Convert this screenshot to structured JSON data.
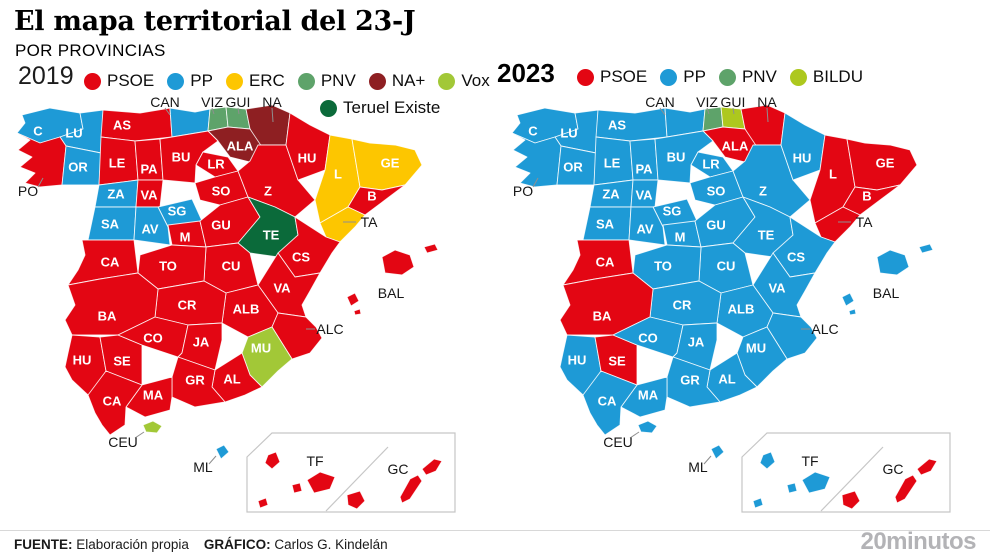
{
  "title": "El mapa territorial del 23-J",
  "subtitle": "POR PROVINCIAS",
  "parties": {
    "PSOE": "#e30613",
    "PP": "#1e9ad6",
    "ERC": "#fdc600",
    "PNV": "#5ea36a",
    "NA+": "#8e1f22",
    "VOX": "#a2c837",
    "BILDU": "#adc81e",
    "TERUEL": "#0b6a3a"
  },
  "province_labels": {
    "C": "C",
    "LU": "LU",
    "PO": "PO",
    "OR": "OR",
    "AS": "AS",
    "CAN": "CAN",
    "VIZ": "VIZ",
    "GUI": "GUI",
    "NA": "NA",
    "ALA": "ALA",
    "LE": "LE",
    "PA": "PA",
    "BU": "BU",
    "LR": "LR",
    "ZA": "ZA",
    "VAD": "VA",
    "SO": "SO",
    "SA": "SA",
    "SG": "SG",
    "AV": "AV",
    "M": "M",
    "GU": "GU",
    "Z": "Z",
    "HUE": "HU",
    "TE": "TE",
    "L": "L",
    "GE": "GE",
    "B": "B",
    "TA": "TA",
    "CS": "CS",
    "VAL": "VA",
    "CU": "CU",
    "ALB": "ALB",
    "ALC": "ALC",
    "MU": "MU",
    "AL": "AL",
    "TO": "TO",
    "CR": "CR",
    "CAC": "CA",
    "BA": "BA",
    "HUL": "HU",
    "SE": "SE",
    "CO": "CO",
    "JA": "JA",
    "GR": "GR",
    "MA": "MA",
    "CAD": "CA",
    "BAL": "BAL",
    "CEU": "CEU",
    "ML": "ML",
    "TF": "TF",
    "GC": "GC"
  },
  "maps": [
    {
      "year": "2019",
      "legend": [
        {
          "label": "PSOE",
          "party": "PSOE"
        },
        {
          "label": "PP",
          "party": "PP"
        },
        {
          "label": "ERC",
          "party": "ERC"
        },
        {
          "label": "PNV",
          "party": "PNV"
        },
        {
          "label": "NA+",
          "party": "NA+"
        },
        {
          "label": "Vox",
          "party": "VOX"
        }
      ],
      "legend2": [
        {
          "label": "Teruel Existe",
          "party": "TERUEL"
        }
      ],
      "results": {
        "C": "PP",
        "LU": "PP",
        "PO": "PSOE",
        "OR": "PP",
        "AS": "PSOE",
        "CAN": "PP",
        "VIZ": "PNV",
        "GUI": "PNV",
        "NA": "NA+",
        "ALA": "NA+",
        "LE": "PSOE",
        "PA": "PSOE",
        "BU": "PSOE",
        "LR": "PSOE",
        "ZA": "PP",
        "VAD": "PSOE",
        "SO": "PSOE",
        "SA": "PP",
        "SG": "PP",
        "AV": "PP",
        "M": "PSOE",
        "GU": "PSOE",
        "Z": "PSOE",
        "HUE": "PSOE",
        "TE": "TERUEL",
        "L": "ERC",
        "GE": "ERC",
        "B": "PSOE",
        "TA": "ERC",
        "CS": "PSOE",
        "VAL": "PSOE",
        "CU": "PSOE",
        "ALB": "PSOE",
        "ALC": "PSOE",
        "MU": "VOX",
        "AL": "PSOE",
        "TO": "PSOE",
        "CR": "PSOE",
        "CAC": "PSOE",
        "BA": "PSOE",
        "HUL": "PSOE",
        "SE": "PSOE",
        "CO": "PSOE",
        "JA": "PSOE",
        "GR": "PSOE",
        "MA": "PSOE",
        "CAD": "PSOE",
        "BAL": "PSOE",
        "CEU": "VOX",
        "ML": "PP",
        "TF": "PSOE",
        "GC": "PSOE"
      }
    },
    {
      "year": "2023",
      "legend": [
        {
          "label": "PSOE",
          "party": "PSOE"
        },
        {
          "label": "PP",
          "party": "PP"
        },
        {
          "label": "PNV",
          "party": "PNV"
        },
        {
          "label": "BILDU",
          "party": "BILDU"
        }
      ],
      "legend2": [],
      "results": {
        "C": "PP",
        "LU": "PP",
        "PO": "PP",
        "OR": "PP",
        "AS": "PP",
        "CAN": "PP",
        "VIZ": "PNV",
        "GUI": "BILDU",
        "NA": "PSOE",
        "ALA": "PSOE",
        "LE": "PP",
        "PA": "PP",
        "BU": "PP",
        "LR": "PP",
        "ZA": "PP",
        "VAD": "PP",
        "SO": "PP",
        "SA": "PP",
        "SG": "PP",
        "AV": "PP",
        "M": "PP",
        "GU": "PP",
        "Z": "PP",
        "HUE": "PP",
        "TE": "PP",
        "L": "PSOE",
        "GE": "PSOE",
        "B": "PSOE",
        "TA": "PSOE",
        "CS": "PP",
        "VAL": "PP",
        "CU": "PP",
        "ALB": "PP",
        "ALC": "PP",
        "MU": "PP",
        "AL": "PP",
        "TO": "PP",
        "CR": "PP",
        "CAC": "PSOE",
        "BA": "PSOE",
        "HUL": "PP",
        "SE": "PSOE",
        "CO": "PP",
        "JA": "PP",
        "GR": "PP",
        "MA": "PP",
        "CAD": "PP",
        "BAL": "PP",
        "CEU": "PP",
        "ML": "PP",
        "TF": "PP",
        "GC": "PSOE"
      }
    }
  ],
  "footer": {
    "source_label": "FUENTE:",
    "source": "Elaboración propia",
    "graphic_label": "GRÁFICO:",
    "graphic": "Carlos G. Kindelán",
    "brand": "20minutos"
  }
}
